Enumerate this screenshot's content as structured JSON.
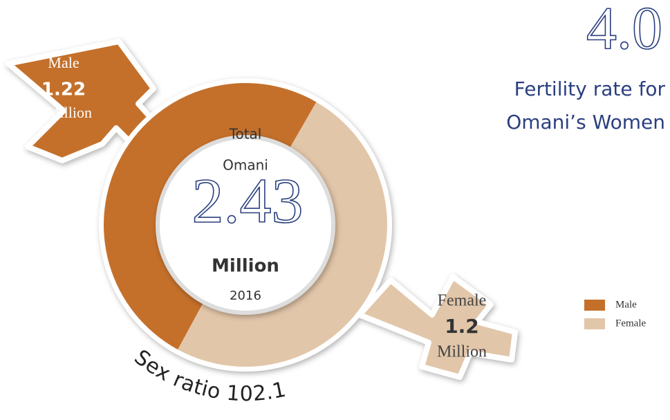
{
  "chart_data": {
    "type": "pie",
    "donut": true,
    "categories": [
      "Male",
      "Female"
    ],
    "values": [
      1.22,
      1.2
    ],
    "colors": [
      "#c4702b",
      "#e2c6a9"
    ],
    "unit": "Million",
    "center": {
      "lines": [
        "Total",
        "Omani"
      ],
      "value": 2.43,
      "year": "2016"
    },
    "annotations": {
      "sex_ratio": "Sex ratio 102.1",
      "fertility_value": "4.0",
      "fertility_label": [
        "Fertility rate for",
        "Omani’s Women"
      ]
    },
    "legend": "right"
  }
}
